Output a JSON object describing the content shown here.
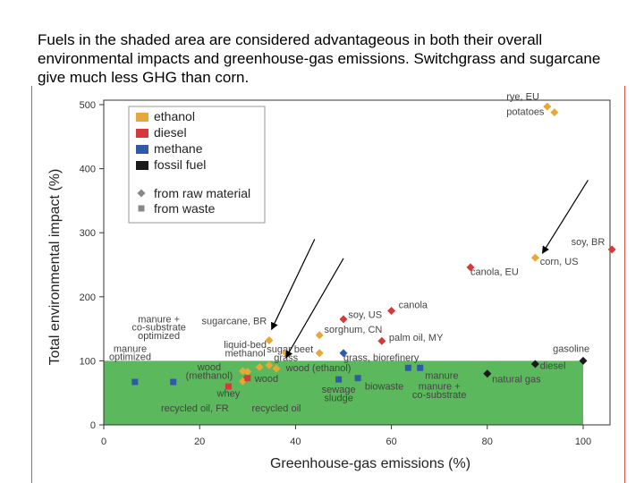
{
  "caption": "Fuels in the shaded area are considered advantageous in both their overall environmental impacts and greenhouse-gas emissions.  Switchgrass and sugarcane give much less GHG than corn.",
  "chart_data": {
    "type": "scatter",
    "xlabel": "Greenhouse-gas emissions (%)",
    "ylabel": "Total environmental impact (%)",
    "xlim": [
      0,
      108
    ],
    "ylim": [
      0,
      510
    ],
    "xticks": [
      "0",
      "20",
      "40",
      "60",
      "80",
      "100"
    ],
    "yticks": [
      "0",
      "100",
      "200",
      "300",
      "400",
      "500"
    ],
    "xtick_values": [
      0,
      20,
      40,
      60,
      80,
      100
    ],
    "ytick_values": [
      0,
      100,
      200,
      300,
      400,
      500
    ],
    "shaded_region": {
      "x": [
        0,
        100
      ],
      "y": [
        0,
        100
      ],
      "color": "#5cb85c"
    },
    "colors": {
      "ethanol": "#e8a838",
      "diesel": "#d43a3a",
      "methane": "#2f5aa8",
      "fossil fuel": "#1a1a1a",
      "marker_gray": "#888888"
    },
    "legend": {
      "position": "top-left",
      "fuel_types": [
        {
          "name": "ethanol",
          "color": "#e8a838"
        },
        {
          "name": "diesel",
          "color": "#d43a3a"
        },
        {
          "name": "methane",
          "color": "#2f5aa8"
        },
        {
          "name": "fossil fuel",
          "color": "#1a1a1a"
        }
      ],
      "markers": [
        {
          "name": "from raw material",
          "shape": "diamond"
        },
        {
          "name": "from waste",
          "shape": "square"
        }
      ]
    },
    "points": [
      {
        "x": 92.5,
        "y": 497,
        "fuel": "ethanol",
        "shape": "diamond"
      },
      {
        "x": 94,
        "y": 488,
        "fuel": "ethanol",
        "shape": "diamond"
      },
      {
        "x": 106,
        "y": 274,
        "fuel": "diesel",
        "shape": "diamond"
      },
      {
        "x": 90,
        "y": 261,
        "fuel": "ethanol",
        "shape": "diamond"
      },
      {
        "x": 76.5,
        "y": 246,
        "fuel": "diesel",
        "shape": "diamond"
      },
      {
        "x": 60,
        "y": 178,
        "fuel": "diesel",
        "shape": "diamond"
      },
      {
        "x": 50,
        "y": 165,
        "fuel": "diesel",
        "shape": "diamond"
      },
      {
        "x": 45,
        "y": 140,
        "fuel": "ethanol",
        "shape": "diamond"
      },
      {
        "x": 58,
        "y": 131,
        "fuel": "diesel",
        "shape": "diamond"
      },
      {
        "x": 34.5,
        "y": 132,
        "fuel": "ethanol",
        "shape": "diamond"
      },
      {
        "x": 50,
        "y": 112,
        "fuel": "methane",
        "shape": "diamond"
      },
      {
        "x": 45,
        "y": 112,
        "fuel": "ethanol",
        "shape": "diamond"
      },
      {
        "x": 38,
        "y": 112,
        "fuel": "ethanol",
        "shape": "diamond"
      },
      {
        "x": 32.5,
        "y": 90,
        "fuel": "ethanol",
        "shape": "diamond"
      },
      {
        "x": 34.5,
        "y": 93,
        "fuel": "ethanol",
        "shape": "diamond"
      },
      {
        "x": 36,
        "y": 88,
        "fuel": "ethanol",
        "shape": "diamond"
      },
      {
        "x": 29,
        "y": 84,
        "fuel": "ethanol",
        "shape": "diamond"
      },
      {
        "x": 30,
        "y": 83,
        "fuel": "ethanol",
        "shape": "diamond"
      },
      {
        "x": 29.5,
        "y": 71,
        "fuel": "diesel",
        "shape": "diamond"
      },
      {
        "x": 29,
        "y": 68,
        "fuel": "ethanol",
        "shape": "diamond"
      },
      {
        "x": 30,
        "y": 73,
        "fuel": "diesel",
        "shape": "square"
      },
      {
        "x": 26,
        "y": 60,
        "fuel": "diesel",
        "shape": "square"
      },
      {
        "x": 6.5,
        "y": 67,
        "fuel": "methane",
        "shape": "square"
      },
      {
        "x": 14.5,
        "y": 67,
        "fuel": "methane",
        "shape": "square"
      },
      {
        "x": 49,
        "y": 71,
        "fuel": "methane",
        "shape": "square"
      },
      {
        "x": 53,
        "y": 73,
        "fuel": "methane",
        "shape": "square"
      },
      {
        "x": 63.5,
        "y": 89,
        "fuel": "methane",
        "shape": "square"
      },
      {
        "x": 66,
        "y": 89,
        "fuel": "methane",
        "shape": "square"
      },
      {
        "x": 80,
        "y": 80,
        "fuel": "fossil fuel",
        "shape": "diamond"
      },
      {
        "x": 90,
        "y": 95,
        "fuel": "fossil fuel",
        "shape": "diamond"
      },
      {
        "x": 100,
        "y": 100,
        "fuel": "fossil fuel",
        "shape": "diamond"
      }
    ],
    "annotations": [
      {
        "text": "rye, EU",
        "x": 84,
        "y": 508,
        "anchor": "start"
      },
      {
        "text": "potatoes",
        "x": 84,
        "y": 484,
        "anchor": "start"
      },
      {
        "text": "soy, BR",
        "x": 97.5,
        "y": 281,
        "anchor": "start"
      },
      {
        "text": "corn, US",
        "x": 91,
        "y": 250,
        "anchor": "start"
      },
      {
        "text": "canola, EU",
        "x": 76.5,
        "y": 234,
        "anchor": "start"
      },
      {
        "text": "canola",
        "x": 61.5,
        "y": 182,
        "anchor": "start"
      },
      {
        "text": "soy, US",
        "x": 51,
        "y": 167,
        "anchor": "start"
      },
      {
        "text": "sorghum, CN",
        "x": 46,
        "y": 144,
        "anchor": "start"
      },
      {
        "text": "palm oil, MY",
        "x": 59.5,
        "y": 131,
        "anchor": "start"
      },
      {
        "text": "sugarcane, BR",
        "x": 34,
        "y": 157,
        "anchor": "end"
      },
      {
        "text": "manure +",
        "x": 11.5,
        "y": 160,
        "anchor": "middle"
      },
      {
        "text": "co-substrate",
        "x": 11.5,
        "y": 147,
        "anchor": "middle"
      },
      {
        "text": "optimized",
        "x": 11.5,
        "y": 134,
        "anchor": "middle"
      },
      {
        "text": "liquid-bed",
        "x": 29.5,
        "y": 120,
        "anchor": "middle"
      },
      {
        "text": "methanol",
        "x": 29.5,
        "y": 107,
        "anchor": "middle"
      },
      {
        "text": "sugar beet",
        "x": 34,
        "y": 113,
        "anchor": "start"
      },
      {
        "text": "grass",
        "x": 35.5,
        "y": 100,
        "anchor": "start"
      },
      {
        "text": "grass, biorefinery",
        "x": 50,
        "y": 100,
        "anchor": "start"
      },
      {
        "text": "manure",
        "x": 5.5,
        "y": 114,
        "anchor": "middle"
      },
      {
        "text": "optimized",
        "x": 5.5,
        "y": 101,
        "anchor": "middle"
      },
      {
        "text": "wood",
        "x": 22,
        "y": 85,
        "anchor": "middle"
      },
      {
        "text": "(methanol)",
        "x": 22,
        "y": 72,
        "anchor": "middle"
      },
      {
        "text": "wood",
        "x": 31.5,
        "y": 67,
        "anchor": "start"
      },
      {
        "text": "wood (ethanol)",
        "x": 38,
        "y": 84,
        "anchor": "start"
      },
      {
        "text": "whey",
        "x": 26,
        "y": 44,
        "anchor": "middle"
      },
      {
        "text": "recycled oil, FR",
        "x": 19,
        "y": 21,
        "anchor": "middle"
      },
      {
        "text": "recycled oil",
        "x": 36,
        "y": 21,
        "anchor": "middle"
      },
      {
        "text": "sewage",
        "x": 49,
        "y": 50,
        "anchor": "middle"
      },
      {
        "text": "sludge",
        "x": 49,
        "y": 37,
        "anchor": "middle"
      },
      {
        "text": "biowaste",
        "x": 58.5,
        "y": 55,
        "anchor": "middle"
      },
      {
        "text": "manure",
        "x": 70.5,
        "y": 72,
        "anchor": "middle"
      },
      {
        "text": "manure +",
        "x": 70,
        "y": 55,
        "anchor": "middle"
      },
      {
        "text": "co-substrate",
        "x": 70,
        "y": 42,
        "anchor": "middle"
      },
      {
        "text": "natural gas",
        "x": 81,
        "y": 66,
        "anchor": "start"
      },
      {
        "text": "gasoline",
        "x": 97.5,
        "y": 114,
        "anchor": "middle"
      },
      {
        "text": "diesel",
        "x": 91,
        "y": 87,
        "anchor": "start"
      }
    ],
    "arrows": [
      {
        "from": [
          44,
          290
        ],
        "to": [
          35,
          149
        ]
      },
      {
        "from": [
          50,
          260
        ],
        "to": [
          38,
          105
        ]
      },
      {
        "from": [
          101,
          382
        ],
        "to": [
          91.5,
          268
        ]
      }
    ]
  }
}
